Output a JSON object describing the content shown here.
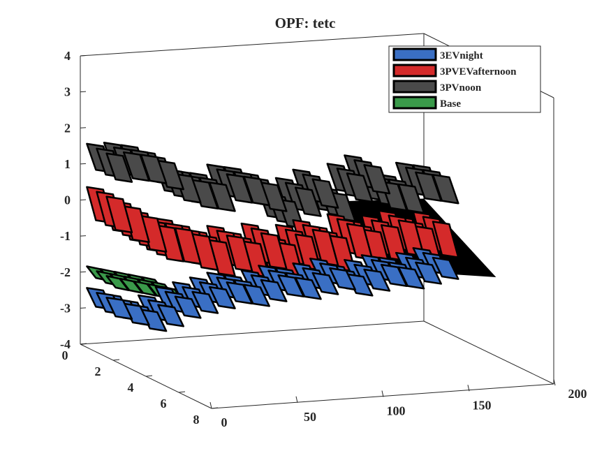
{
  "chart_data": {
    "type": "3d-surface",
    "title": "OPF: tetc",
    "xlabel": "",
    "ylabel": "",
    "zlabel": "",
    "xlim": [
      0,
      200
    ],
    "ylim": [
      0,
      8
    ],
    "zlim": [
      -4,
      4
    ],
    "x_ticks": [
      "0",
      "50",
      "100",
      "150",
      "200"
    ],
    "y_ticks": [
      "0",
      "2",
      "4",
      "6",
      "8"
    ],
    "z_ticks": [
      "4",
      "3",
      "2",
      "1",
      "0",
      "-1",
      "-2",
      "-3",
      "-4"
    ],
    "legend": {
      "location": "top-right",
      "entries": [
        {
          "name": "3EVnight",
          "color": "#3a6fc4"
        },
        {
          "name": "3PVEVafternoon",
          "color": "#d42a2a"
        },
        {
          "name": "3PVnoon",
          "color": "#4a4a4a"
        },
        {
          "name": "Base",
          "color": "#3a9a4a"
        }
      ]
    },
    "series": [
      {
        "name": "3PVnoon",
        "color": "#4a4a4a",
        "level": 0.6,
        "amplitude": 0.7,
        "x_start": 0,
        "x_end": 200,
        "profile": [
          1.3,
          1.3,
          1.2,
          1.0,
          0.6,
          0.4,
          0.3,
          0.5,
          0.4,
          0.2,
          -0.3,
          0.0,
          0.2,
          -0.2,
          0.3,
          0.5,
          0.0,
          -0.1,
          0.2,
          0.1
        ]
      },
      {
        "name": "3PVEVafternoon",
        "color": "#d42a2a",
        "level": -0.8,
        "amplitude": 0.9,
        "x_start": 0,
        "x_end": 200,
        "profile": [
          0.0,
          -0.3,
          -0.6,
          -0.9,
          -1.0,
          -1.2,
          -1.4,
          -1.3,
          -1.5,
          -1.3,
          -1.6,
          -1.4,
          -1.3,
          -1.5,
          -1.2,
          -1.4,
          -1.3,
          -1.2,
          -1.4,
          -1.3
        ]
      },
      {
        "name": "Base",
        "color": "#3a9a4a",
        "level": -2.1,
        "amplitude": 0.3,
        "x_start": 0,
        "x_end": 40,
        "profile": [
          -1.9,
          -2.0,
          -2.1,
          -2.2,
          -2.3
        ]
      },
      {
        "name": "3EVnight",
        "color": "#3a6fc4",
        "level": -2.7,
        "amplitude": 0.5,
        "x_start": 0,
        "x_end": 200,
        "profile": [
          -2.6,
          -2.8,
          -3.0,
          -2.9,
          -2.7,
          -2.6,
          -2.5,
          -2.4,
          -2.5,
          -2.4,
          -2.3,
          -2.4,
          -2.3,
          -2.2,
          -2.4,
          -2.3,
          -2.2,
          -2.3,
          -2.2,
          -2.1
        ]
      }
    ],
    "black_wedge": {
      "x_range": [
        140,
        200
      ],
      "y_range": [
        0,
        8
      ],
      "z": -0.9
    }
  }
}
